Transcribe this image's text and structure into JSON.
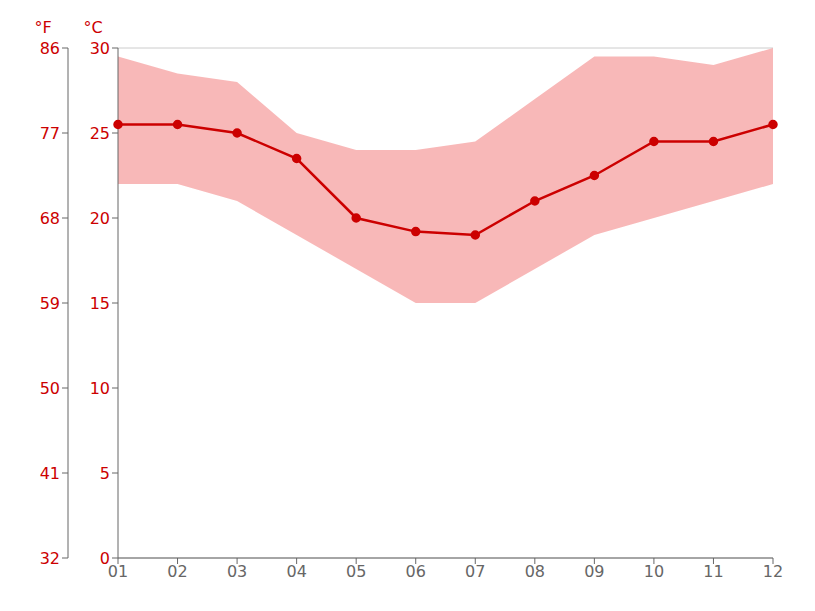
{
  "chart_data": {
    "type": "line",
    "categories": [
      "01",
      "02",
      "03",
      "04",
      "05",
      "06",
      "07",
      "08",
      "09",
      "10",
      "11",
      "12"
    ],
    "series": [
      {
        "type": "area",
        "color": "#f5a0a0",
        "low": [
          22.0,
          22.0,
          21.0,
          19.0,
          17.0,
          15.0,
          15.0,
          17.0,
          19.0,
          20.0,
          21.0,
          22.0
        ],
        "high": [
          29.5,
          28.5,
          28.0,
          25.0,
          24.0,
          24.0,
          24.5,
          27.0,
          29.5,
          29.5,
          29.0,
          30.0
        ]
      },
      {
        "type": "line",
        "color": "#cc0000",
        "marker": "circle",
        "values": [
          25.5,
          25.5,
          25.0,
          23.5,
          20.0,
          19.2,
          19.0,
          21.0,
          22.5,
          24.5,
          24.5,
          25.5
        ]
      }
    ],
    "ylim": [
      0,
      30
    ],
    "yticks": [
      0,
      5,
      10,
      15,
      20,
      25,
      30
    ],
    "y_label": "°C",
    "y2lim": [
      32,
      86
    ],
    "y2ticks": [
      32,
      41,
      50,
      59,
      68,
      77,
      86
    ],
    "y2_label": "°F",
    "grid": true
  }
}
